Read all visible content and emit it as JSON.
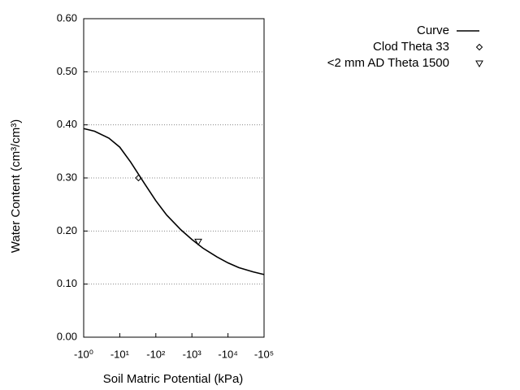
{
  "chart_data": {
    "type": "line",
    "x_label": "Soil Matric Potential (kPa)",
    "y_label": "Water Content (cm³/cm³)",
    "xlim": [
      -1,
      -100000
    ],
    "xscale": "log",
    "xticks": [
      {
        "value": -1,
        "label": "-10⁰"
      },
      {
        "value": -10,
        "label": "-10¹"
      },
      {
        "value": -100,
        "label": "-10²"
      },
      {
        "value": -1000,
        "label": "-10³"
      },
      {
        "value": -10000,
        "label": "-10⁴"
      },
      {
        "value": -100000,
        "label": "-10⁵"
      }
    ],
    "ylim": [
      0,
      0.6
    ],
    "yticks": [
      {
        "value": 0,
        "label": "0.00"
      },
      {
        "value": 0.1,
        "label": "0.10"
      },
      {
        "value": 0.2,
        "label": "0.20"
      },
      {
        "value": 0.3,
        "label": "0.30"
      },
      {
        "value": 0.4,
        "label": "0.40"
      },
      {
        "value": 0.5,
        "label": "0.50"
      },
      {
        "value": 0.6,
        "label": "0.60"
      }
    ],
    "grid": true,
    "legend": "right",
    "series": [
      {
        "name": "Curve",
        "color": "#000000",
        "marker": "line",
        "x": [
          -1,
          -2,
          -5,
          -10,
          -20,
          -50,
          -100,
          -200,
          -500,
          -1000,
          -2000,
          -5000,
          -10000,
          -20000,
          -50000,
          -100000
        ],
        "values": [
          0.393,
          0.388,
          0.375,
          0.358,
          0.33,
          0.288,
          0.257,
          0.23,
          0.202,
          0.184,
          0.168,
          0.151,
          0.14,
          0.131,
          0.123,
          0.118
        ]
      },
      {
        "name": "Clod Theta 33",
        "color": "#000000",
        "marker": "diamond",
        "x": [
          -33
        ],
        "values": [
          0.3
        ]
      },
      {
        "name": "<2 mm AD Theta 1500",
        "color": "#000000",
        "marker": "triangle-down",
        "x": [
          -1500
        ],
        "values": [
          0.18
        ]
      }
    ]
  }
}
